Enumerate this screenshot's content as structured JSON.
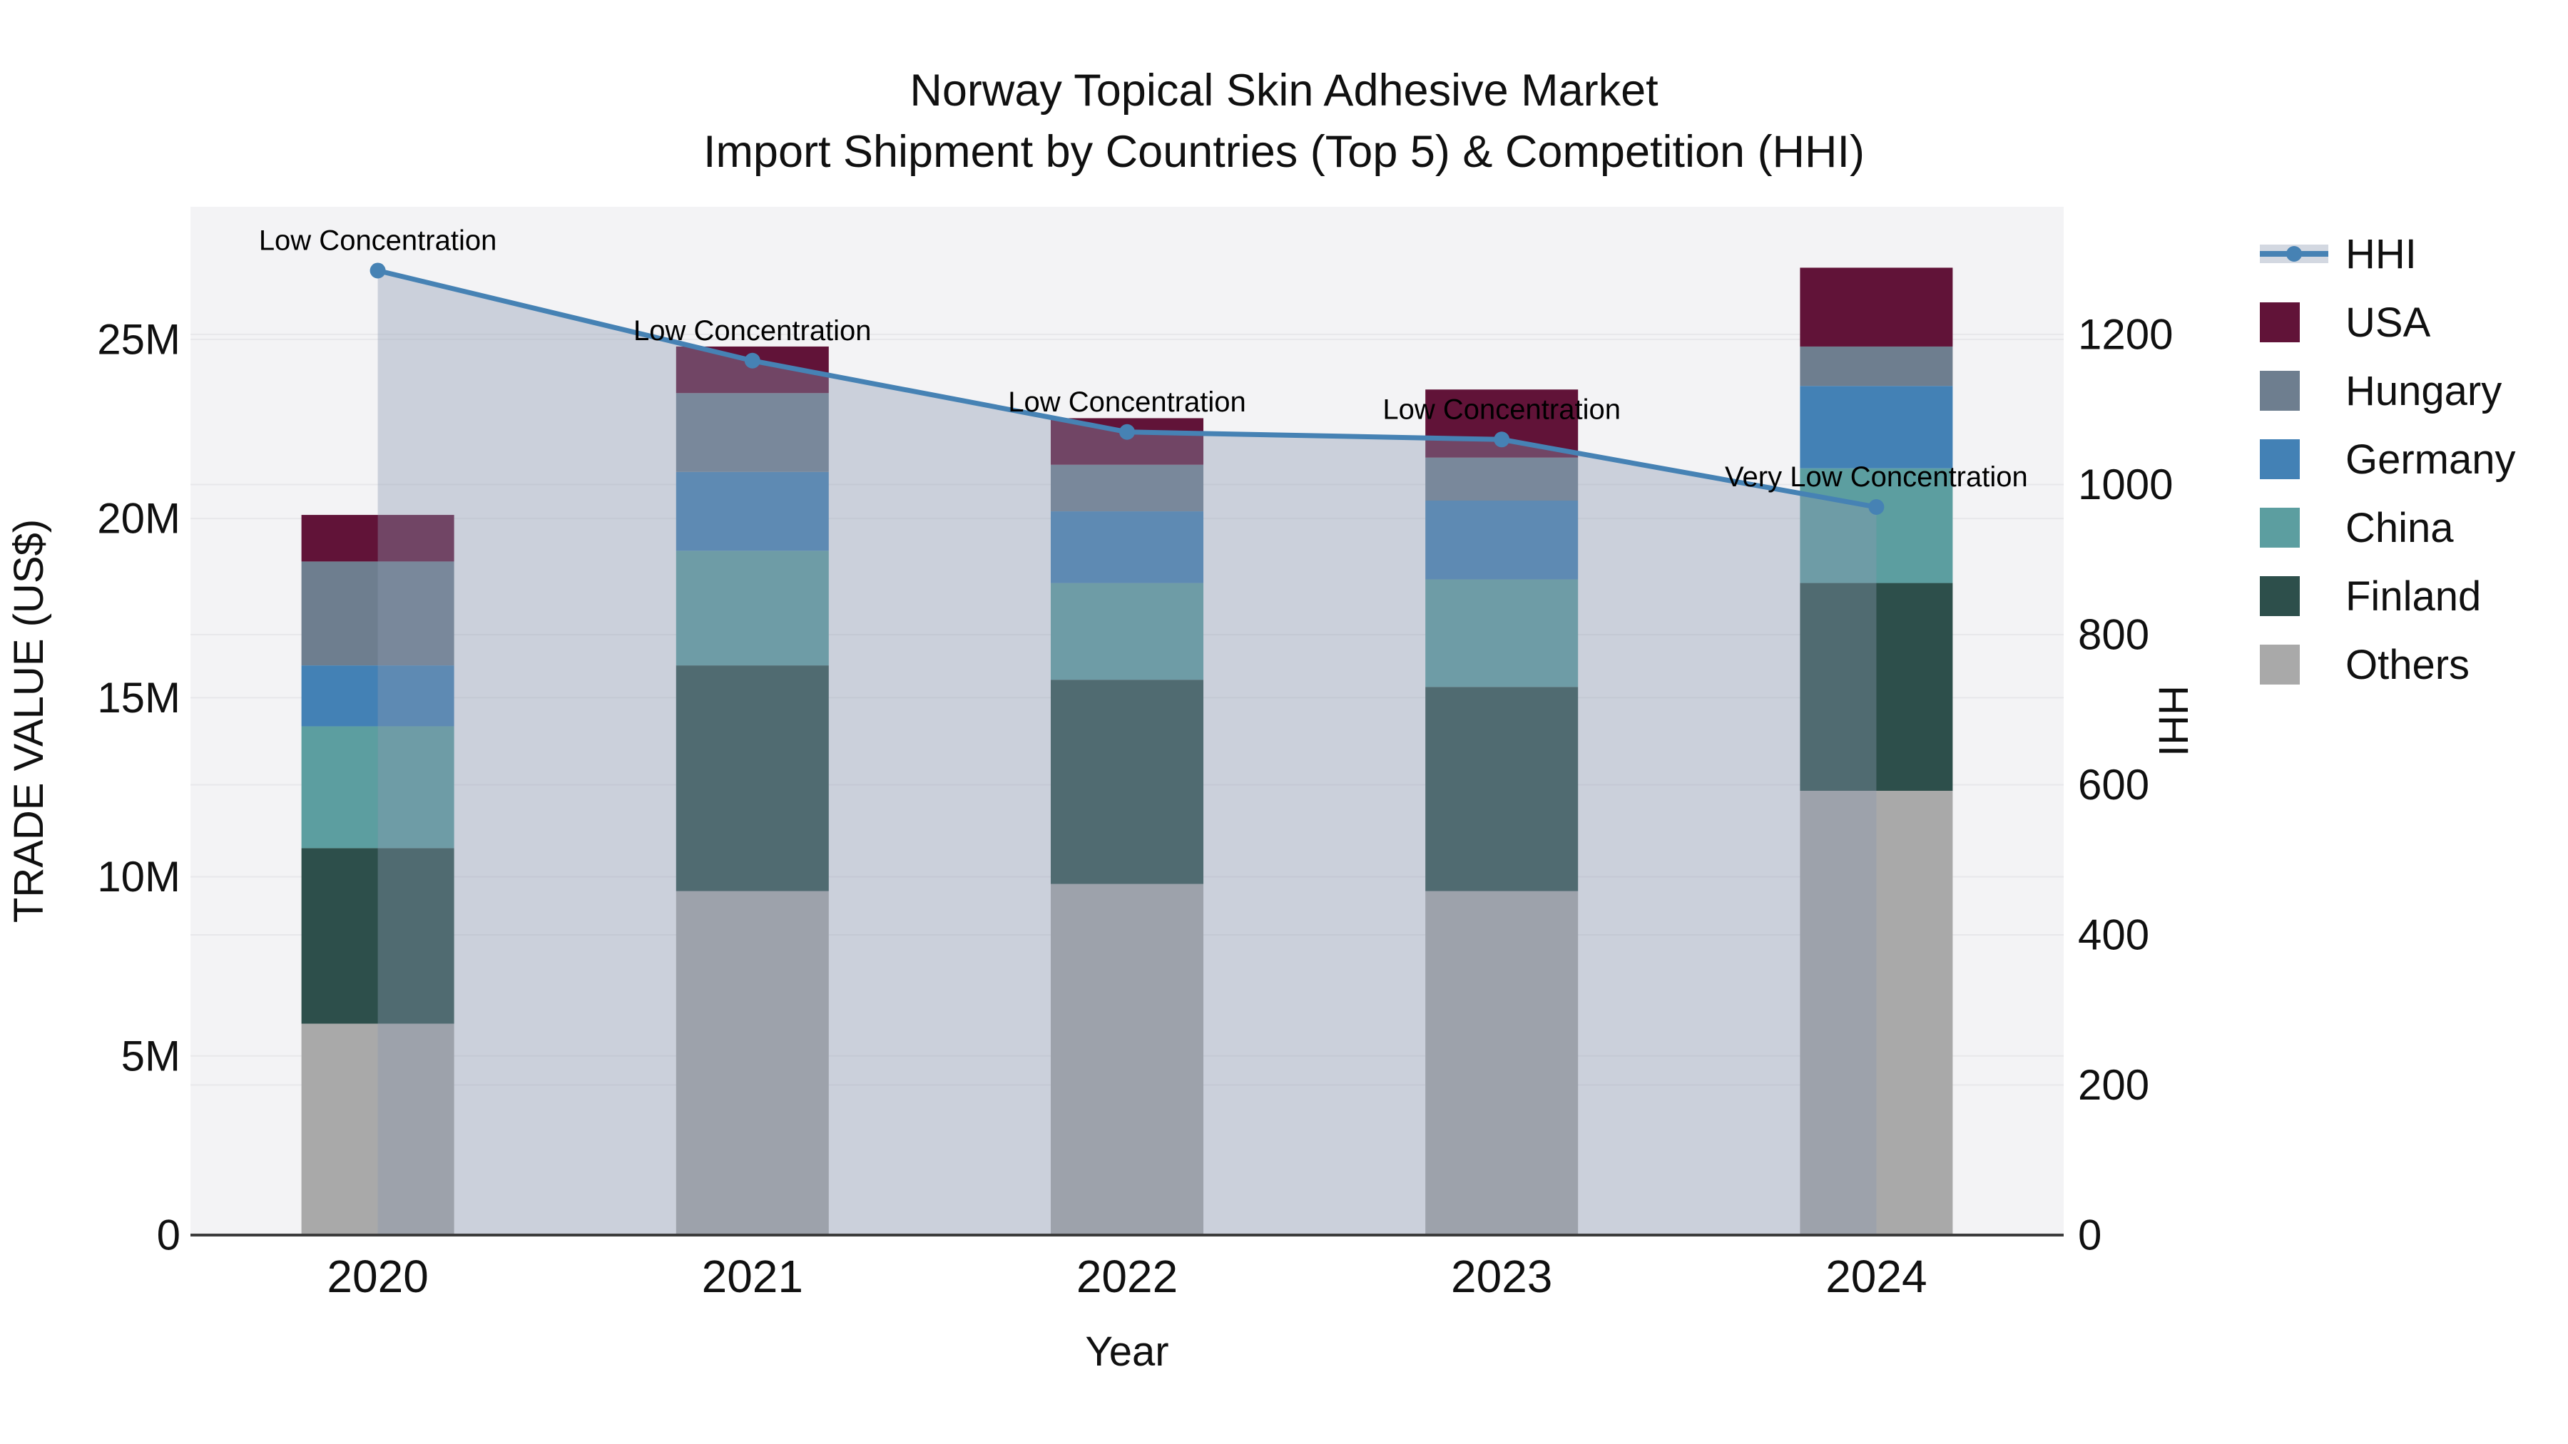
{
  "title": {
    "line1": "Norway Topical Skin Adhesive Market",
    "line2": "Import Shipment by Countries (Top 5) & Competition (HHI)"
  },
  "colors": {
    "page_bg": "#ffffff",
    "plot_bg": "#f3f3f5",
    "grid": "#e7e7ea",
    "axis_line": "#3c3c3c",
    "text": "#101010",
    "annotation_text": "#000000"
  },
  "chart_data": {
    "type": "bar+line",
    "categories": [
      "2020",
      "2021",
      "2022",
      "2023",
      "2024"
    ],
    "xlabel": "Year",
    "left_axis": {
      "title": "TRADE VALUE (US$)",
      "unit": "million US$",
      "tick_values": [
        0,
        5,
        10,
        15,
        20,
        25
      ],
      "tick_labels": [
        "0",
        "5M",
        "10M",
        "15M",
        "20M",
        "25M"
      ],
      "range": [
        0,
        28.7
      ],
      "grid": true
    },
    "right_axis": {
      "title": "HHI",
      "tick_values": [
        0,
        200,
        400,
        600,
        800,
        1000,
        1200
      ],
      "tick_labels": [
        "0",
        "200",
        "400",
        "600",
        "800",
        "1000",
        "1200"
      ],
      "range": [
        0,
        1370
      ],
      "grid": true
    },
    "bar_series_bottom_to_top": [
      {
        "name": "Others",
        "color": "#a9a9a9",
        "values_musd": [
          5.9,
          9.6,
          9.8,
          9.6,
          12.4
        ]
      },
      {
        "name": "Finland",
        "color": "#2d4f4b",
        "values_musd": [
          4.9,
          6.3,
          5.7,
          5.7,
          5.8
        ]
      },
      {
        "name": "China",
        "color": "#5c9ea0",
        "values_musd": [
          3.4,
          3.2,
          2.7,
          3.0,
          3.2
        ]
      },
      {
        "name": "Germany",
        "color": "#4381b5",
        "values_musd": [
          1.7,
          2.2,
          2.0,
          2.2,
          2.3
        ]
      },
      {
        "name": "Hungary",
        "color": "#6e7e8f",
        "values_musd": [
          2.9,
          2.2,
          1.3,
          1.2,
          1.1
        ]
      },
      {
        "name": "USA",
        "color": "#611338",
        "values_musd": [
          1.3,
          1.3,
          1.3,
          1.9,
          2.2
        ]
      }
    ],
    "bar_totals_musd": [
      20.1,
      24.8,
      22.8,
      23.6,
      27.0
    ],
    "hhi_series": {
      "name": "HHI",
      "line_color": "#4682b4",
      "fill_color": "rgba(140,152,176,0.38)",
      "values": [
        1285,
        1165,
        1070,
        1060,
        970
      ]
    },
    "annotations": [
      {
        "year": "2020",
        "text": "Low Concentration"
      },
      {
        "year": "2021",
        "text": "Low Concentration"
      },
      {
        "year": "2022",
        "text": "Low Concentration"
      },
      {
        "year": "2023",
        "text": "Low Concentration"
      },
      {
        "year": "2024",
        "text": "Very Low Concentration"
      }
    ],
    "legend_position": "right"
  },
  "legend": {
    "items": [
      {
        "label": "HHI",
        "color": "#4682b4",
        "type": "line"
      },
      {
        "label": "USA",
        "color": "#611338",
        "type": "swatch"
      },
      {
        "label": "Hungary",
        "color": "#6e7e8f",
        "type": "swatch"
      },
      {
        "label": "Germany",
        "color": "#4381b5",
        "type": "swatch"
      },
      {
        "label": "China",
        "color": "#5c9ea0",
        "type": "swatch"
      },
      {
        "label": "Finland",
        "color": "#2d4f4b",
        "type": "swatch"
      },
      {
        "label": "Others",
        "color": "#a9a9a9",
        "type": "swatch"
      }
    ]
  }
}
